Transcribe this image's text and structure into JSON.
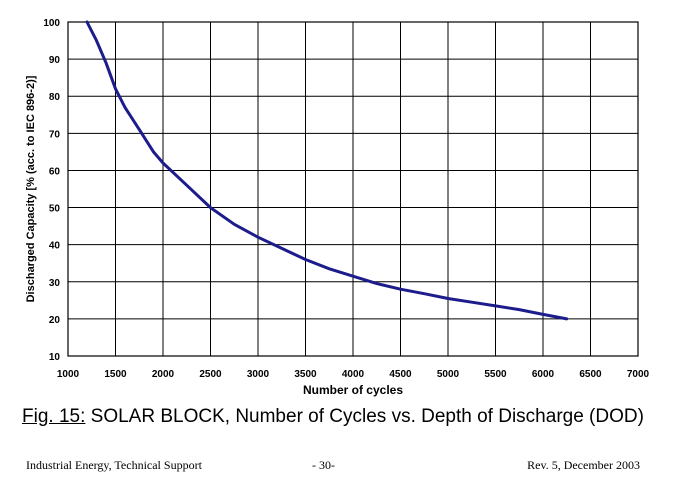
{
  "chart_data": {
    "type": "line",
    "title": "",
    "xlabel": "Number of cycles",
    "ylabel": "Discharged Capacity [% (acc. to IEC 896-2)]",
    "xlim": [
      1000,
      7000
    ],
    "ylim": [
      10,
      100
    ],
    "x_ticks": [
      1000,
      1500,
      2000,
      2500,
      3000,
      3500,
      4000,
      4500,
      5000,
      5500,
      6000,
      6500,
      7000
    ],
    "y_ticks": [
      10,
      20,
      30,
      40,
      50,
      60,
      70,
      80,
      90,
      100
    ],
    "grid": true,
    "series_color": "#1c1c8c",
    "series": [
      {
        "x": [
          1200,
          1300,
          1400,
          1500,
          1600,
          1750,
          1900,
          2000,
          2250,
          2500,
          2750,
          3000,
          3250,
          3500,
          3750,
          4000,
          4250,
          4500,
          4750,
          5000,
          5250,
          5500,
          5750,
          6000,
          6250
        ],
        "values": [
          100,
          95,
          89,
          82,
          77,
          71,
          65,
          62,
          56,
          50,
          45.5,
          42,
          39,
          36,
          33.5,
          31.5,
          29.5,
          28,
          26.8,
          25.5,
          24.5,
          23.5,
          22.5,
          21.2,
          20
        ]
      }
    ]
  },
  "caption": {
    "figure_ref": "Fig. 15:",
    "text": " SOLAR BLOCK, Number of Cycles vs. Depth of Discharge (DOD)"
  },
  "footer": {
    "left": "Industrial Energy, Technical Support",
    "center": "- 30-",
    "right": "Rev. 5, December 2003"
  }
}
